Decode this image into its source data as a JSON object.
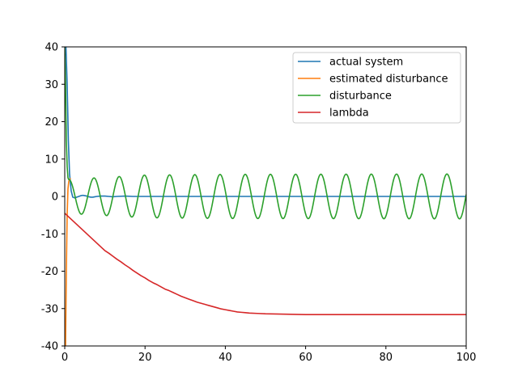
{
  "chart_data": {
    "type": "line",
    "xlim": [
      0,
      100
    ],
    "ylim": [
      -40,
      40
    ],
    "grid": false,
    "legend_position": "top-right",
    "x_ticks": [
      0,
      20,
      40,
      60,
      80,
      100
    ],
    "y_ticks": [
      -40,
      -30,
      -20,
      -10,
      0,
      10,
      20,
      30,
      40
    ],
    "series": [
      {
        "name": "actual system",
        "color": "#1f77b4",
        "points": [
          [
            0.0,
            40.0
          ],
          [
            0.3,
            40.0
          ],
          [
            0.6,
            30.0
          ],
          [
            0.9,
            15.0
          ],
          [
            1.2,
            6.0
          ],
          [
            1.6,
            1.5
          ],
          [
            2.0,
            -0.2
          ],
          [
            2.5,
            -0.4
          ],
          [
            3.0,
            -0.2
          ],
          [
            3.5,
            0.0
          ],
          [
            4.0,
            0.2
          ],
          [
            4.5,
            0.3
          ],
          [
            5.0,
            0.2
          ],
          [
            5.5,
            0.1
          ],
          [
            6.0,
            -0.1
          ],
          [
            6.5,
            -0.2
          ],
          [
            7.0,
            -0.2
          ],
          [
            7.5,
            -0.1
          ],
          [
            8.0,
            0.0
          ],
          [
            9.0,
            0.1
          ],
          [
            10.0,
            0.1
          ],
          [
            11.0,
            0.0
          ],
          [
            12.0,
            -0.1
          ],
          [
            13.0,
            0.0
          ],
          [
            15.0,
            0.1
          ],
          [
            17.0,
            0.0
          ],
          [
            20.0,
            0.0
          ],
          [
            25.0,
            0.0
          ],
          [
            30.0,
            0.0
          ],
          [
            40.0,
            0.0
          ],
          [
            50.0,
            0.0
          ],
          [
            60.0,
            0.0
          ],
          [
            70.0,
            0.0
          ],
          [
            80.0,
            0.0
          ],
          [
            90.0,
            0.0
          ],
          [
            100.0,
            0.0
          ]
        ]
      },
      {
        "name": "estimated disturbance",
        "color": "#ff7f0e",
        "points": [
          [
            0.0,
            -40.0
          ],
          [
            0.2,
            -40.0
          ],
          [
            0.4,
            -20.0
          ],
          [
            0.6,
            -5.0
          ],
          [
            0.8,
            2.0
          ],
          [
            1.0,
            4.0
          ],
          [
            1.2,
            4.6
          ],
          [
            1.5,
            4.8
          ]
        ]
      },
      {
        "name": "disturbance",
        "color": "#2ca02c",
        "period": 6.28,
        "amplitude_end": 6.0,
        "envelope": [
          [
            0,
            4.5
          ],
          [
            20,
            5.7
          ],
          [
            40,
            5.9
          ],
          [
            100,
            6.0
          ]
        ],
        "points": [
          [
            0.0,
            40.0
          ],
          [
            0.2,
            30.0
          ],
          [
            0.4,
            15.0
          ],
          [
            0.6,
            8.0
          ],
          [
            0.8,
            5.0
          ],
          [
            1.0,
            4.5
          ]
        ]
      },
      {
        "name": "lambda",
        "color": "#d62728",
        "points": [
          [
            0.0,
            -4.5
          ],
          [
            1.0,
            -5.5
          ],
          [
            2.0,
            -6.5
          ],
          [
            3.0,
            -7.5
          ],
          [
            4.0,
            -8.5
          ],
          [
            5.0,
            -9.5
          ],
          [
            6.0,
            -10.5
          ],
          [
            7.0,
            -11.5
          ],
          [
            8.0,
            -12.5
          ],
          [
            9.0,
            -13.5
          ],
          [
            10.0,
            -14.5
          ],
          [
            11.0,
            -15.2
          ],
          [
            12.0,
            -16.0
          ],
          [
            13.0,
            -16.8
          ],
          [
            14.0,
            -17.5
          ],
          [
            15.0,
            -18.3
          ],
          [
            16.0,
            -19.0
          ],
          [
            17.0,
            -19.8
          ],
          [
            18.0,
            -20.5
          ],
          [
            19.0,
            -21.2
          ],
          [
            20.0,
            -21.8
          ],
          [
            21.0,
            -22.5
          ],
          [
            22.0,
            -23.1
          ],
          [
            23.0,
            -23.6
          ],
          [
            24.0,
            -24.2
          ],
          [
            25.0,
            -24.8
          ],
          [
            26.0,
            -25.2
          ],
          [
            27.0,
            -25.7
          ],
          [
            28.0,
            -26.2
          ],
          [
            29.0,
            -26.7
          ],
          [
            30.0,
            -27.1
          ],
          [
            31.0,
            -27.5
          ],
          [
            32.0,
            -27.9
          ],
          [
            33.0,
            -28.3
          ],
          [
            34.0,
            -28.6
          ],
          [
            35.0,
            -28.9
          ],
          [
            36.0,
            -29.2
          ],
          [
            37.0,
            -29.5
          ],
          [
            38.0,
            -29.8
          ],
          [
            39.0,
            -30.1
          ],
          [
            40.0,
            -30.3
          ],
          [
            41.0,
            -30.5
          ],
          [
            42.0,
            -30.7
          ],
          [
            43.0,
            -30.9
          ],
          [
            44.0,
            -31.0
          ],
          [
            45.0,
            -31.1
          ],
          [
            46.0,
            -31.2
          ],
          [
            48.0,
            -31.3
          ],
          [
            50.0,
            -31.4
          ],
          [
            55.0,
            -31.5
          ],
          [
            60.0,
            -31.6
          ],
          [
            70.0,
            -31.6
          ],
          [
            80.0,
            -31.6
          ],
          [
            90.0,
            -31.6
          ],
          [
            100.0,
            -31.6
          ]
        ]
      }
    ]
  }
}
